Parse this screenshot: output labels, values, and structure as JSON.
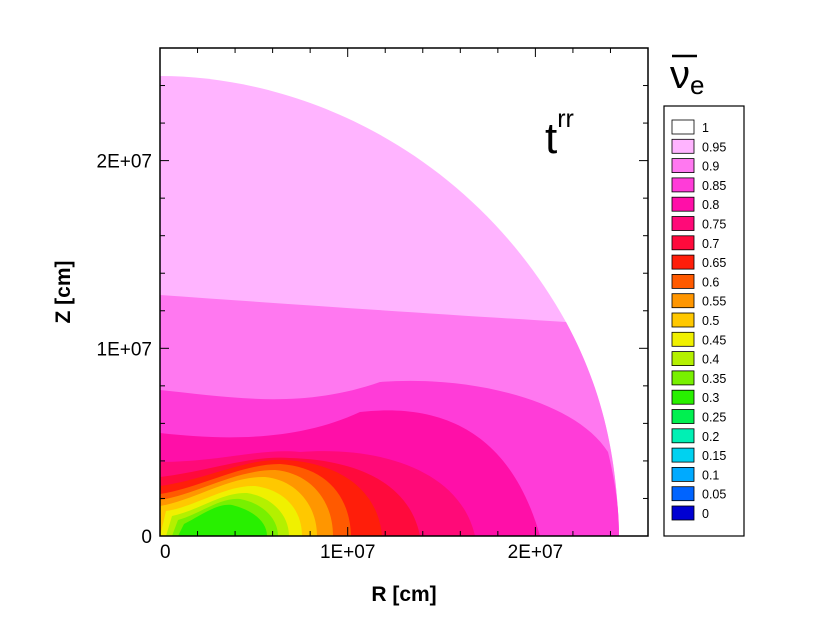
{
  "chart_data": {
    "type": "heatmap",
    "title": "",
    "xlabel": "R [cm]",
    "ylabel": "Z [cm]",
    "xlim": [
      0,
      26000000
    ],
    "ylim": [
      0,
      26000000
    ],
    "x_ticks": [
      {
        "value": 0,
        "label": "0"
      },
      {
        "value": 10000000,
        "label": "1E+07"
      },
      {
        "value": 20000000,
        "label": "2E+07"
      }
    ],
    "y_ticks": [
      {
        "value": 0,
        "label": "0"
      },
      {
        "value": 10000000,
        "label": "1E+07"
      },
      {
        "value": 20000000,
        "label": "2E+07"
      }
    ],
    "annotation": {
      "base": "t",
      "superscript": "rr"
    },
    "legend": {
      "title": "ν̅e",
      "title_main": "ν",
      "title_sub": "e",
      "placement": "right",
      "levels": [
        {
          "value": "1",
          "color": "#ffffff"
        },
        {
          "value": "0.95",
          "color": "#ffb4ff"
        },
        {
          "value": "0.9",
          "color": "#ff78f0"
        },
        {
          "value": "0.85",
          "color": "#ff3cd8"
        },
        {
          "value": "0.8",
          "color": "#ff0fa8"
        },
        {
          "value": "0.75",
          "color": "#ff0a78"
        },
        {
          "value": "0.7",
          "color": "#ff0a3c"
        },
        {
          "value": "0.65",
          "color": "#ff1e0a"
        },
        {
          "value": "0.6",
          "color": "#ff5a00"
        },
        {
          "value": "0.55",
          "color": "#ff9600"
        },
        {
          "value": "0.5",
          "color": "#ffc800"
        },
        {
          "value": "0.45",
          "color": "#f0f000"
        },
        {
          "value": "0.4",
          "color": "#b4f000"
        },
        {
          "value": "0.35",
          "color": "#78f000"
        },
        {
          "value": "0.3",
          "color": "#28f000"
        },
        {
          "value": "0.25",
          "color": "#00f050"
        },
        {
          "value": "0.2",
          "color": "#00f0b4"
        },
        {
          "value": "0.15",
          "color": "#00d2f0"
        },
        {
          "value": "0.1",
          "color": "#00aaff"
        },
        {
          "value": "0.05",
          "color": "#0064ff"
        },
        {
          "value": "0",
          "color": "#0000d2"
        }
      ]
    },
    "contour_bands": [
      {
        "level": 0.95,
        "color": "#ffb4ff"
      },
      {
        "level": 0.9,
        "color": "#ff78f0"
      },
      {
        "level": 0.85,
        "color": "#ff3cd8"
      },
      {
        "level": 0.8,
        "color": "#ff0fa8"
      },
      {
        "level": 0.75,
        "color": "#ff0a78"
      },
      {
        "level": 0.7,
        "color": "#ff0a3c"
      },
      {
        "level": 0.65,
        "color": "#ff1e0a"
      },
      {
        "level": 0.6,
        "color": "#ff5a00"
      },
      {
        "level": 0.55,
        "color": "#ff9600"
      },
      {
        "level": 0.5,
        "color": "#ffc800"
      },
      {
        "level": 0.45,
        "color": "#f0f000"
      },
      {
        "level": 0.4,
        "color": "#b4f000"
      },
      {
        "level": 0.35,
        "color": "#78f000"
      },
      {
        "level": 0.3,
        "color": "#28f000"
      }
    ]
  }
}
